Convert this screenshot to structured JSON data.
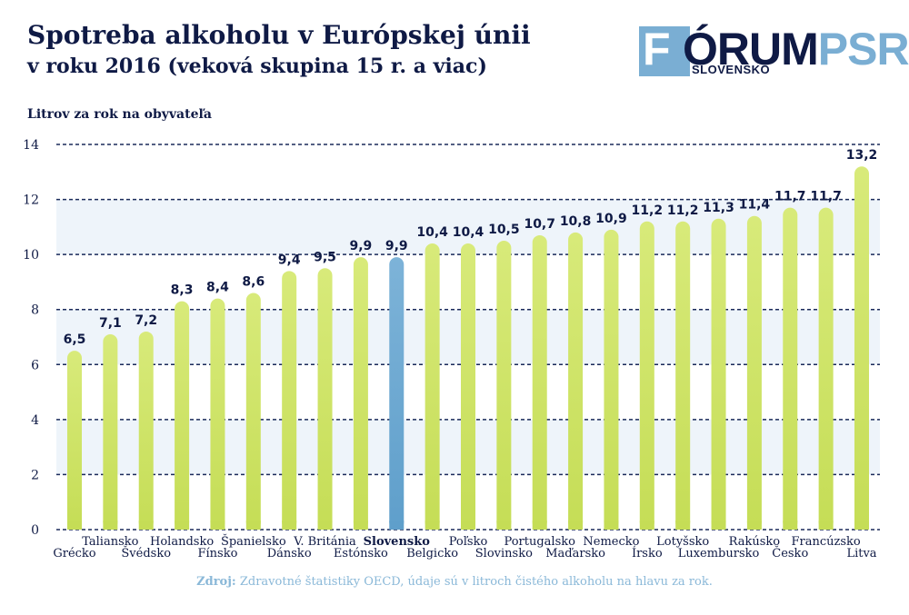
{
  "header": {
    "title": "Spotreba alkoholu v Európskej únii",
    "subtitle": "v roku 2016 (veková skupina 15 r. a viac)"
  },
  "logo": {
    "word_f": "F",
    "word_orum": "ÓRUM",
    "word_psr": "PSR",
    "subtitle": "SLOVENSKO"
  },
  "source": {
    "key": "Zdroj:",
    "text": " Zdravotné štatistiky OECD, údaje sú v litroch čistého alkoholu na hlavu za rok."
  },
  "colors": {
    "bar": "#c5dd56",
    "bar_top": "#d8ea7a",
    "highlight": "#5f9fcb",
    "highlight_top": "#7db3d8",
    "grid": "#1a2a5a",
    "text": "#0f1a45",
    "band": "#eef4fa"
  },
  "chart_data": {
    "type": "bar",
    "ylabel": "Litrov za rok na obyvateľa",
    "ylim": [
      0,
      14
    ],
    "yticks": [
      0,
      2,
      4,
      6,
      8,
      10,
      12,
      14
    ],
    "grid": true,
    "highlight": "Slovensko",
    "categories": [
      "Grécko",
      "Taliansko",
      "Švédsko",
      "Holandsko",
      "Fínsko",
      "Španielsko",
      "Dánsko",
      "V. Británia",
      "Estónsko",
      "Slovensko",
      "Belgicko",
      "Poľsko",
      "Slovinsko",
      "Portugalsko",
      "Maďarsko",
      "Nemecko",
      "Írsko",
      "Lotyšsko",
      "Luxembursko",
      "Rakúsko",
      "Česko",
      "Francúzsko",
      "Litva"
    ],
    "values": [
      6.5,
      7.1,
      7.2,
      8.3,
      8.4,
      8.6,
      9.4,
      9.5,
      9.9,
      9.9,
      10.4,
      10.4,
      10.5,
      10.7,
      10.8,
      10.9,
      11.2,
      11.2,
      11.3,
      11.4,
      11.7,
      11.7,
      13.2
    ],
    "value_labels": [
      "6,5",
      "7,1",
      "7,2",
      "8,3",
      "8,4",
      "8,6",
      "9,4",
      "9,5",
      "9,9",
      "9,9",
      "10,4",
      "10,4",
      "10,5",
      "10,7",
      "10,8",
      "10,9",
      "11,2",
      "11,2",
      "11,3",
      "11,4",
      "11,7",
      "11,7",
      "13,2"
    ]
  }
}
